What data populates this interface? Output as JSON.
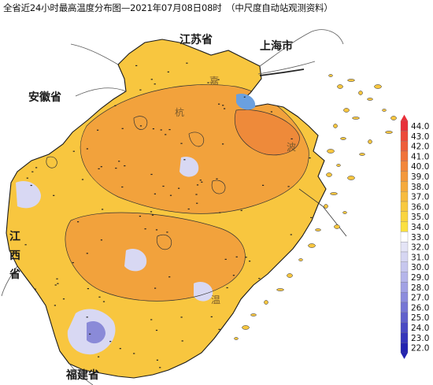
{
  "title": "全省近24小时最高温度分布图—2021年07月08日08时　（中尺度自动站观测资料）",
  "regions": {
    "jiangsu": "江苏省",
    "shanghai": "上海市",
    "anhui": "安徽省",
    "jiangxi_1": "江",
    "jiangxi_2": "西",
    "jiangxi_3": "省",
    "fujian": "福建省"
  },
  "city_labels": [
    "嘉",
    "杭",
    "波",
    "温"
  ],
  "legend": {
    "labels": [
      "44.0",
      "43.0",
      "42.0",
      "41.0",
      "40.0",
      "39.0",
      "38.0",
      "37.0",
      "36.0",
      "35.0",
      "34.0",
      "33.0",
      "32.0",
      "31.0",
      "30.0",
      "29.0",
      "28.0",
      "27.0",
      "26.0",
      "25.0",
      "24.0",
      "23.0",
      "22.0"
    ],
    "colors": [
      "#e8303a",
      "#ec4a3a",
      "#ee5e3a",
      "#f0733a",
      "#f2863b",
      "#f3983c",
      "#f5aa3d",
      "#f7bb3e",
      "#f8c93f",
      "#fad53f",
      "#fbe040",
      "#ffffff",
      "#e4e4f6",
      "#d6d6f2",
      "#c7c7ee",
      "#b5b5ea",
      "#a1a1e4",
      "#8c8cdd",
      "#7676d5",
      "#6060cc",
      "#4a4ac3",
      "#3636ba",
      "#2424b0"
    ]
  },
  "colors": {
    "hot": "#f2a23c",
    "warm": "#f8c63f",
    "cool": "#d8d8f3",
    "cold": "#8a8ad8",
    "coast": "#1a1a1a",
    "boundary": "#3a3a3a"
  }
}
